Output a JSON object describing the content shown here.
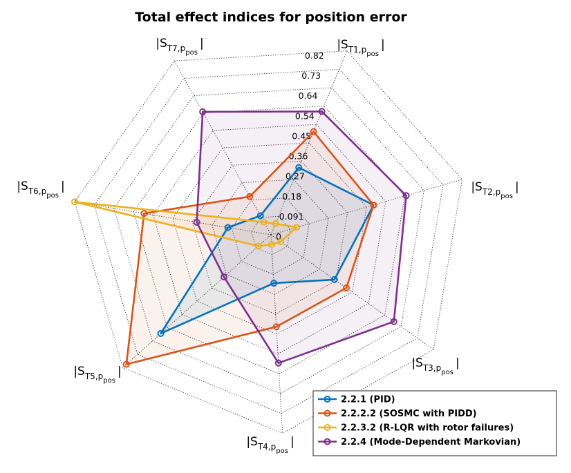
{
  "chart_data": {
    "type": "radar",
    "title": "Total effect indices for position error",
    "axes": [
      {
        "label": "|S",
        "sub": "T1,p",
        "subsub": "pos",
        "end": "|"
      },
      {
        "label": "|S",
        "sub": "T2,p",
        "subsub": "pos",
        "end": "|"
      },
      {
        "label": "|S",
        "sub": "T3,p",
        "subsub": "pos",
        "end": "|"
      },
      {
        "label": "|S",
        "sub": "T4,p",
        "subsub": "pos",
        "end": "|"
      },
      {
        "label": "|S",
        "sub": "T5,p",
        "subsub": "pos",
        "end": "|"
      },
      {
        "label": "|S",
        "sub": "T6,p",
        "subsub": "pos",
        "end": "|"
      },
      {
        "label": "|S",
        "sub": "T7,p",
        "subsub": "pos",
        "end": "|"
      }
    ],
    "ticks": [
      "0",
      "0.091",
      "0.18",
      "0.27",
      "0.36",
      "0.45",
      "0.54",
      "0.64",
      "0.73",
      "0.82"
    ],
    "rlim": [
      0,
      0.82
    ],
    "series": [
      {
        "name": "2.2.1 (PID)",
        "color": "#0072BD",
        "values": [
          0.3,
          0.44,
          0.32,
          0.2,
          0.61,
          0.18,
          0.09
        ]
      },
      {
        "name": "2.2.2.2 (SOSMC with PIDD)",
        "color": "#D95319",
        "values": [
          0.46,
          0.44,
          0.38,
          0.38,
          0.8,
          0.53,
          0.18
        ]
      },
      {
        "name": "2.2.3.2 (R-LQR with rotor failures)",
        "color": "#EDB120",
        "values": [
          0.05,
          0.11,
          0.05,
          0.04,
          0.07,
          0.82,
          0.06
        ]
      },
      {
        "name": "2.2.4 (Mode-Dependent Markovian)",
        "color": "#7E2F8E",
        "values": [
          0.55,
          0.58,
          0.62,
          0.53,
          0.26,
          0.31,
          0.58
        ]
      }
    ],
    "legend_position": "bottom-right",
    "grid": true
  }
}
